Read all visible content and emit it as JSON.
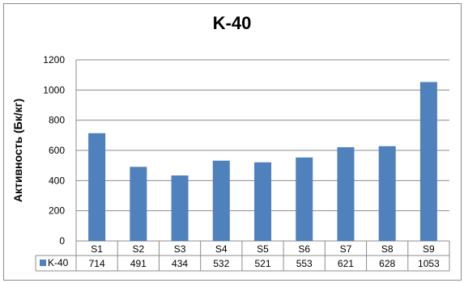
{
  "chart_data": {
    "type": "bar",
    "title": "K-40",
    "ylabel": "Активность (Бк/кг)",
    "xlabel": "",
    "categories": [
      "S1",
      "S2",
      "S3",
      "S4",
      "S5",
      "S6",
      "S7",
      "S8",
      "S9"
    ],
    "series": [
      {
        "name": "K-40",
        "values": [
          714,
          491,
          434,
          532,
          521,
          553,
          621,
          628,
          1053
        ],
        "color": "#4f81bd"
      }
    ],
    "ylim": [
      0,
      1200
    ],
    "yticks": [
      0,
      200,
      400,
      600,
      800,
      1000,
      1200
    ],
    "grid": true,
    "legend": "data-table"
  }
}
